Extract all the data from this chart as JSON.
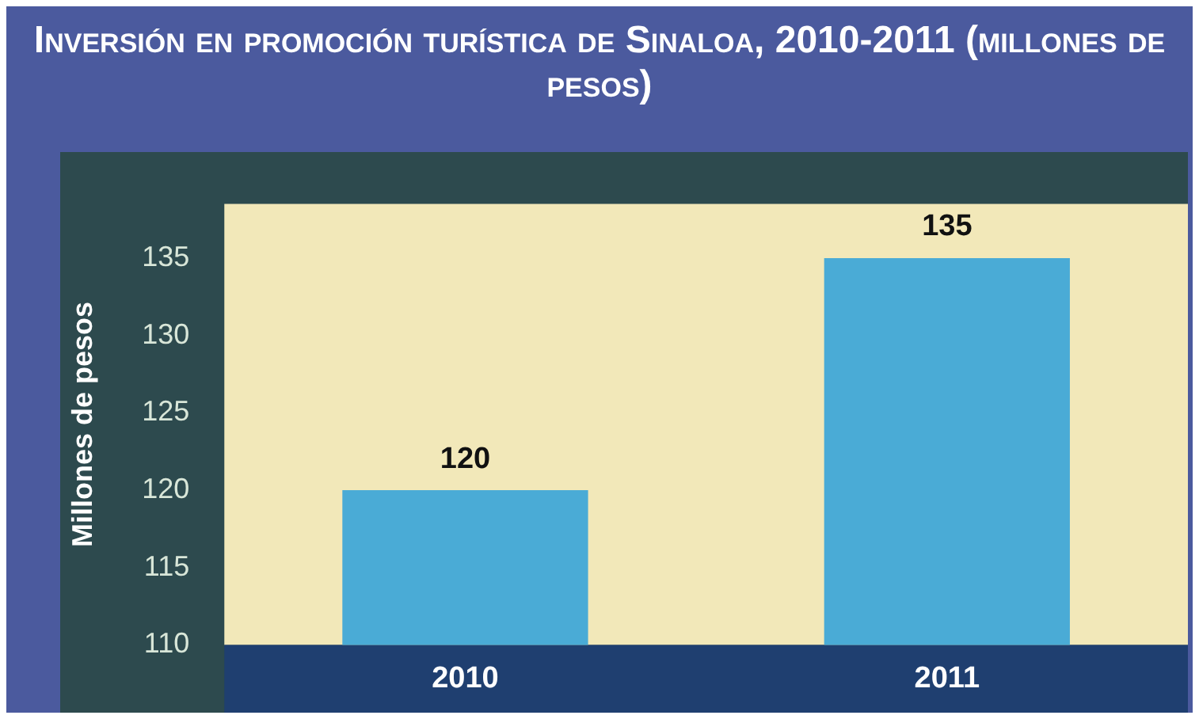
{
  "chart_data": {
    "type": "bar",
    "title": "Inversión en promoción turística de Sinaloa, 2010-2011 (millones de pesos)",
    "ylabel": "Millones de pesos",
    "categories": [
      "2010",
      "2011"
    ],
    "values": [
      120,
      135
    ],
    "color": "#4aabd6",
    "ylim": [
      110,
      138.5
    ],
    "yticks": [
      110,
      115,
      120,
      125,
      130,
      135
    ],
    "grid": false,
    "legend": false,
    "data_labels": true
  }
}
